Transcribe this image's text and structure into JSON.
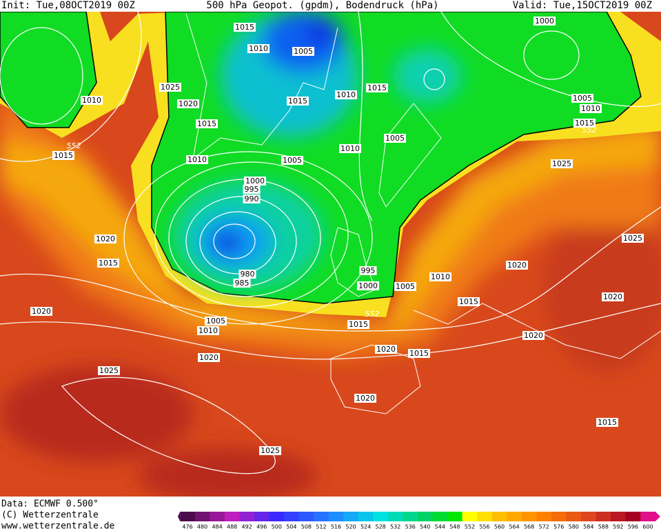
{
  "header": {
    "init": "Init: Tue,08OCT2019 00Z",
    "title": "500 hPa Geopot. (gpdm), Bodendruck (hPa)",
    "valid": "Valid: Tue,15OCT2019 00Z"
  },
  "isobar_labels": [
    "1015",
    "1010",
    "1005",
    "1000",
    "1025",
    "1010",
    "1020",
    "1010",
    "1015",
    "1015",
    "1005",
    "1010",
    "1015",
    "1015",
    "552",
    "552",
    "1015",
    "1005",
    "1010",
    "1010",
    "1005",
    "1025",
    "1000",
    "995",
    "990",
    "1020",
    "1025",
    "1015",
    "1020",
    "995",
    "980",
    "985",
    "1010",
    "1000",
    "1005",
    "1020",
    "1015",
    "1020",
    "552",
    "1005",
    "1015",
    "1010",
    "1020",
    "1020",
    "1015",
    "1020",
    "1025",
    "1020",
    "1015",
    "1025"
  ],
  "colorbar": {
    "ticks": [
      476,
      480,
      484,
      488,
      492,
      496,
      500,
      504,
      508,
      512,
      516,
      520,
      524,
      528,
      532,
      536,
      540,
      544,
      548,
      552,
      556,
      560,
      564,
      568,
      572,
      576,
      580,
      584,
      588,
      592,
      596,
      600
    ]
  },
  "footer": {
    "data": "Data: ECMWF   0.500°",
    "copyright": "(C) Wetterzentrale",
    "url": "www.wetterzentrale.de"
  }
}
